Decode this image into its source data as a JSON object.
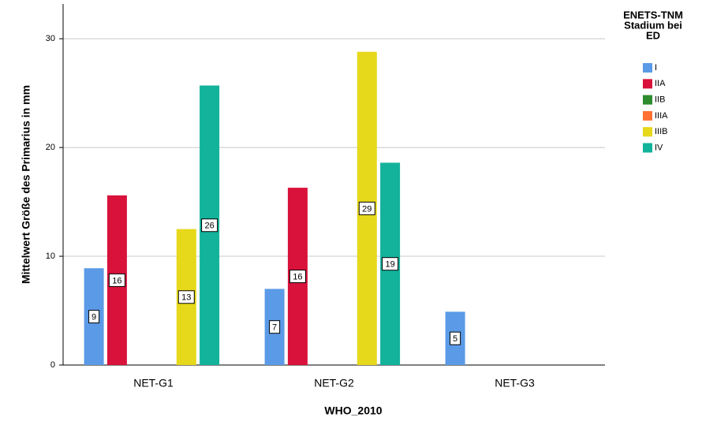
{
  "chart_data": {
    "type": "bar",
    "x_label": "WHO_2010",
    "y_label": "Mittelwert Größe des Primarius in mm",
    "legend_title": [
      "ENETS-TNM",
      "Stadium bei",
      "ED"
    ],
    "categories": [
      "NET-G1",
      "NET-G2",
      "NET-G3"
    ],
    "series": [
      {
        "name": "I",
        "color": "#5b9ae6",
        "values": [
          8.9,
          7.0,
          4.9
        ],
        "value_labels": [
          "9",
          "7",
          "5"
        ]
      },
      {
        "name": "IIA",
        "color": "#d9123b",
        "values": [
          15.6,
          16.3,
          null
        ],
        "value_labels": [
          "16",
          "16",
          null
        ]
      },
      {
        "name": "IIB",
        "color": "#2e8b2e",
        "values": [
          null,
          null,
          null
        ],
        "value_labels": [
          null,
          null,
          null
        ]
      },
      {
        "name": "IIIA",
        "color": "#ff7033",
        "values": [
          null,
          null,
          null
        ],
        "value_labels": [
          null,
          null,
          null
        ]
      },
      {
        "name": "IIIB",
        "color": "#e6d81a",
        "values": [
          12.5,
          28.8,
          null
        ],
        "value_labels": [
          "13",
          "29",
          null
        ]
      },
      {
        "name": "IV",
        "color": "#12b39a",
        "values": [
          25.7,
          18.6,
          null
        ],
        "value_labels": [
          "26",
          "19",
          null
        ]
      }
    ],
    "ylim": [
      0,
      33.2
    ],
    "yticks": [
      0,
      10,
      20,
      30
    ],
    "grid": true,
    "legend": "right"
  }
}
